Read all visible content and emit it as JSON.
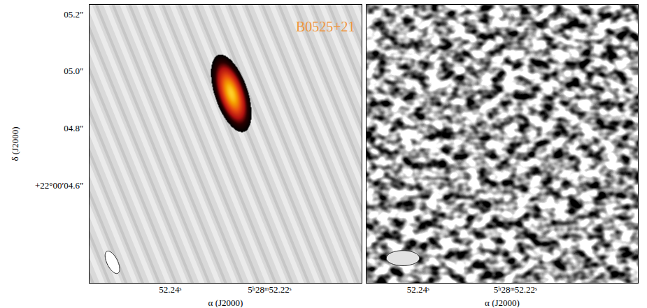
{
  "chart_data": [
    {
      "type": "image",
      "title": "B0525+21",
      "x_label": "α (J2000)",
      "y_label": "δ (J2000)",
      "xlim": [
        52.2563,
        52.2014
      ],
      "ylim": [
        4.258,
        5.234
      ],
      "xticks": [
        {
          "value": 52.24,
          "label": "52.24ˢ"
        },
        {
          "value": 52.22,
          "label": "5ʰ28ᵐ52.22ˢ"
        }
      ],
      "yticks": [
        {
          "value": 5.2,
          "label": "05.2″"
        },
        {
          "value": 5.0,
          "label": "05.0″"
        },
        {
          "value": 4.8,
          "label": "04.8″"
        },
        {
          "value": 4.6,
          "label": "+22°00′04.6″"
        }
      ],
      "dec_deg": 22,
      "source": {
        "ra": 52.2277,
        "dec": 4.923,
        "major": 0.146,
        "minor": 0.049,
        "pa": 14
      },
      "beam": {
        "major": 0.083,
        "minor": 0.031,
        "pa": 20
      }
    },
    {
      "type": "image",
      "x_label": "α (J2000)",
      "xlim": [
        52.2507,
        52.1947
      ],
      "ylim": [
        4.258,
        5.234
      ],
      "xticks": [
        {
          "value": 52.24,
          "label": "52.24ˢ"
        },
        {
          "value": 52.22,
          "label": "5ʰ28ᵐ52.22ˢ"
        }
      ],
      "tick_labels": "x",
      "dec_deg": 22,
      "beam": {
        "major": 0.095,
        "minor": 0.053,
        "pa": 90
      }
    }
  ]
}
